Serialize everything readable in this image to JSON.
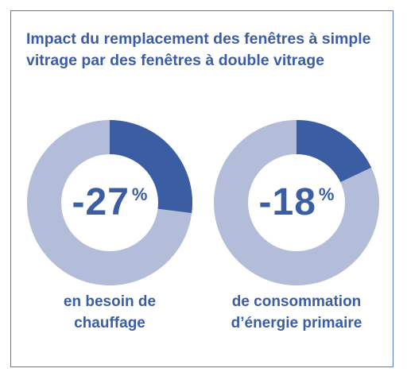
{
  "title": "Impact du remplacement des fenêtres à simple vitrage par des fenêtres à double vitrage",
  "colors": {
    "accent": "#3a5da4",
    "ring_bg": "#b3bcd8",
    "frame": "#5b7bb8"
  },
  "charts": [
    {
      "number": "-27",
      "unit": "%",
      "caption_line1": "en besoin de",
      "caption_line2": "chauffage"
    },
    {
      "number": "-18",
      "unit": "%",
      "caption_line1": "de consommation",
      "caption_line2": "d’énergie primaire"
    }
  ],
  "chart_data": [
    {
      "type": "pie",
      "values": [
        27,
        73
      ],
      "labels": [
        "-27%",
        ""
      ]
    },
    {
      "type": "pie",
      "values": [
        18,
        82
      ],
      "labels": [
        "-18%",
        ""
      ]
    }
  ]
}
